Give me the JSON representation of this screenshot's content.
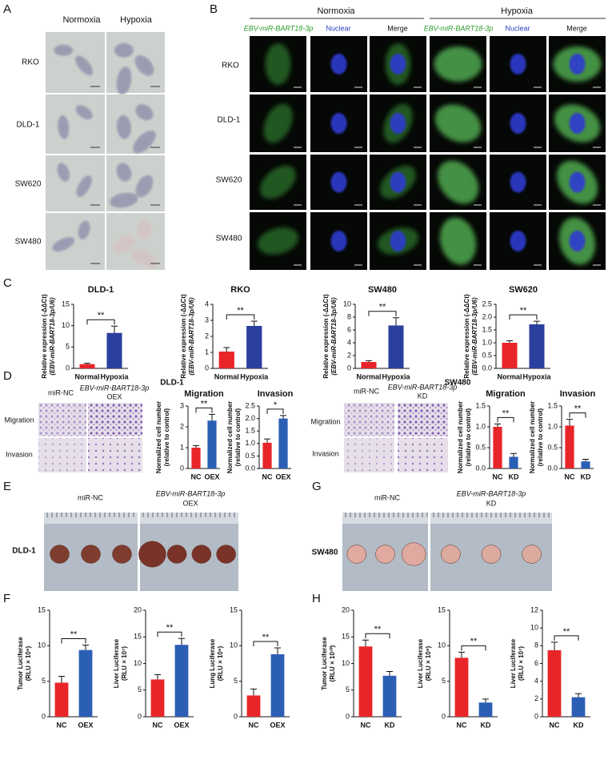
{
  "panels": {
    "letters": [
      "A",
      "B",
      "C",
      "D",
      "E",
      "F",
      "G",
      "H"
    ]
  },
  "panel_a": {
    "columns": [
      "Normoxia",
      "Hypoxia"
    ],
    "rows": [
      "RKO",
      "DLD-1",
      "SW620",
      "SW480"
    ]
  },
  "panel_b": {
    "groups": [
      "Normoxia",
      "Hypoxia"
    ],
    "channels": [
      "EBV-miR-BART18-3p",
      "Nuclear",
      "Merge"
    ],
    "rows": [
      "RKO",
      "DLD-1",
      "SW620",
      "SW480"
    ]
  },
  "panel_d": {
    "left": {
      "title": "DLD-1",
      "columns": [
        "miR-NC",
        "EBV-miR-BART18-3p",
        "OEX"
      ],
      "rows": [
        "Migration",
        "Invasion"
      ]
    },
    "right": {
      "title": "SW480",
      "columns": [
        "miR-NC",
        "EBV-miR-BART18-3p",
        "KD"
      ],
      "rows": [
        "Migration",
        "Invasion"
      ]
    }
  },
  "panel_e": {
    "columns": [
      "miR-NC",
      "EBV-miR-BART18-3p",
      "OEX"
    ],
    "row": "DLD-1"
  },
  "panel_g": {
    "columns": [
      "miR-NC",
      "EBV-miR-BART18-3p",
      "KD"
    ],
    "row": "SW480"
  },
  "chart_data": [
    {
      "type": "bar",
      "title": "DLD-1",
      "ylabel": [
        "Relative expression (-ΔΔCt)",
        "(EBV-miR-BART18-3p/U6)"
      ],
      "categories": [
        "Normal",
        "Hypoxia"
      ],
      "values": [
        1.0,
        8.3
      ],
      "errors": [
        0.2,
        1.6
      ],
      "colors": [
        "#e8262a",
        "#2b3f9e"
      ],
      "ylim": [
        0,
        15
      ],
      "yticks": [
        0,
        5,
        10,
        15
      ],
      "annotation": "**"
    },
    {
      "type": "bar",
      "title": "RKO",
      "ylabel": [
        "Relative expression (-ΔΔCt)",
        "(EBV-miR-BART18-3p/U6)"
      ],
      "categories": [
        "Normal",
        "Hypoxia"
      ],
      "values": [
        1.05,
        2.65
      ],
      "errors": [
        0.25,
        0.3
      ],
      "colors": [
        "#e8262a",
        "#2b3f9e"
      ],
      "ylim": [
        0,
        4
      ],
      "yticks": [
        0,
        1,
        2,
        3,
        4
      ],
      "annotation": "**"
    },
    {
      "type": "bar",
      "title": "SW480",
      "ylabel": [
        "Relative expression (-ΔΔCt)",
        "(EBV-miR-BART18-3p/U6)"
      ],
      "categories": [
        "Normal",
        "Hypoxia"
      ],
      "values": [
        1.0,
        6.7
      ],
      "errors": [
        0.2,
        1.2
      ],
      "colors": [
        "#e8262a",
        "#2b3f9e"
      ],
      "ylim": [
        0,
        10
      ],
      "yticks": [
        0,
        2,
        4,
        6,
        8,
        10
      ],
      "annotation": "**"
    },
    {
      "type": "bar",
      "title": "SW620",
      "ylabel": [
        "Relative expression (-ΔΔCt)",
        "(EBV-miR-BART18-3p/U6)"
      ],
      "categories": [
        "Normal",
        "Hypoxia"
      ],
      "values": [
        1.0,
        1.72
      ],
      "errors": [
        0.08,
        0.12
      ],
      "colors": [
        "#e8262a",
        "#2b3f9e"
      ],
      "ylim": [
        0,
        2.5
      ],
      "yticks": [
        {
          "value": 0,
          "label": "0.0"
        },
        0.5,
        {
          "value": 1,
          "label": "1.0"
        },
        1.5,
        {
          "value": 2,
          "label": "2.0"
        },
        2.5
      ],
      "annotation": "**"
    },
    {
      "type": "bar",
      "title": "Migration",
      "ylabel": [
        "Normalized cell number",
        "(relative to control)"
      ],
      "categories": [
        "NC",
        "OEX"
      ],
      "values": [
        1.0,
        2.3
      ],
      "errors": [
        0.1,
        0.3
      ],
      "colors": [
        "#e8262a",
        "#2b5fb5"
      ],
      "ylim": [
        0,
        3
      ],
      "yticks": [
        0,
        1,
        2,
        3
      ],
      "annotation": "**"
    },
    {
      "type": "bar",
      "title": "Invasion",
      "ylabel": [
        "Normalized cell number",
        "(relative to control)"
      ],
      "categories": [
        "NC",
        "OEX"
      ],
      "values": [
        1.03,
        2.0
      ],
      "errors": [
        0.15,
        0.12
      ],
      "colors": [
        "#e8262a",
        "#2b5fb5"
      ],
      "ylim": [
        0,
        2.5
      ],
      "yticks": [
        {
          "value": 0,
          "label": "0.0"
        },
        0.5,
        {
          "value": 1,
          "label": "1.0"
        },
        1.5,
        {
          "value": 2,
          "label": "2.0"
        },
        2.5
      ],
      "annotation": "*"
    },
    {
      "type": "bar",
      "title": "Migration",
      "ylabel": [
        "Normalized cell number",
        "(relative to control)"
      ],
      "categories": [
        "NC",
        "KD"
      ],
      "values": [
        1.0,
        0.28
      ],
      "errors": [
        0.07,
        0.08
      ],
      "colors": [
        "#e8262a",
        "#2b5fb5"
      ],
      "ylim": [
        0,
        1.5
      ],
      "yticks": [
        {
          "value": 0,
          "label": "0.0"
        },
        0.5,
        {
          "value": 1,
          "label": "1.0"
        },
        1.5
      ],
      "annotation": "**"
    },
    {
      "type": "bar",
      "title": "Invasion",
      "ylabel": [
        "Normalized cell number",
        "(relative to control)"
      ],
      "categories": [
        "NC",
        "KD"
      ],
      "values": [
        1.03,
        0.17
      ],
      "errors": [
        0.15,
        0.05
      ],
      "colors": [
        "#e8262a",
        "#2b5fb5"
      ],
      "ylim": [
        0,
        1.5
      ],
      "yticks": [
        {
          "value": 0,
          "label": "0.0"
        },
        0.5,
        {
          "value": 1,
          "label": "1.0"
        },
        1.5
      ],
      "annotation": "**"
    },
    {
      "type": "bar",
      "ylabel": [
        "Tumor Luciferase",
        "(RLU × 10⁶)"
      ],
      "categories": [
        "NC",
        "OEX"
      ],
      "values": [
        4.8,
        9.4
      ],
      "errors": [
        0.9,
        0.7
      ],
      "colors": [
        "#e8262a",
        "#2b5fb5"
      ],
      "ylim": [
        0,
        15
      ],
      "yticks": [
        0,
        5,
        10,
        15
      ],
      "annotation": "**"
    },
    {
      "type": "bar",
      "ylabel": [
        "Liver Luciferase",
        "(RLU × 10⁷)"
      ],
      "categories": [
        "NC",
        "OEX"
      ],
      "values": [
        7.0,
        13.5
      ],
      "errors": [
        0.9,
        1.2
      ],
      "colors": [
        "#e8262a",
        "#2b5fb5"
      ],
      "ylim": [
        0,
        20
      ],
      "yticks": [
        0,
        5,
        10,
        15,
        20
      ],
      "annotation": "**"
    },
    {
      "type": "bar",
      "ylabel": [
        "Lung Luciferase",
        "(RLU × 10⁶)"
      ],
      "categories": [
        "NC",
        "OEX"
      ],
      "values": [
        3.0,
        8.8
      ],
      "errors": [
        0.9,
        0.9
      ],
      "colors": [
        "#e8262a",
        "#2b5fb5"
      ],
      "ylim": [
        0,
        15
      ],
      "yticks": [
        0,
        5,
        10,
        15
      ],
      "annotation": "**"
    },
    {
      "type": "bar",
      "ylabel": [
        "Tumor Luciferase",
        "(RLU × 10¹⁰)"
      ],
      "categories": [
        "NC",
        "KD"
      ],
      "values": [
        13.2,
        7.7
      ],
      "errors": [
        1.2,
        0.8
      ],
      "colors": [
        "#e8262a",
        "#2b5fb5"
      ],
      "ylim": [
        0,
        20
      ],
      "yticks": [
        0,
        5,
        10,
        15,
        20
      ],
      "annotation": "**"
    },
    {
      "type": "bar",
      "ylabel": [
        "Liver Luciferase",
        "(RLU × 10⁸)"
      ],
      "categories": [
        "NC",
        "KD"
      ],
      "values": [
        8.3,
        2.0
      ],
      "errors": [
        0.8,
        0.5
      ],
      "colors": [
        "#e8262a",
        "#2b5fb5"
      ],
      "ylim": [
        0,
        15
      ],
      "yticks": [
        0,
        5,
        10,
        15
      ],
      "annotation": "**"
    },
    {
      "type": "bar",
      "ylabel": [
        "Liver Luciferase",
        "(RLU × 10⁷)"
      ],
      "categories": [
        "NC",
        "KD"
      ],
      "values": [
        7.5,
        2.2
      ],
      "errors": [
        0.9,
        0.4
      ],
      "colors": [
        "#e8262a",
        "#2b5fb5"
      ],
      "ylim": [
        0,
        12
      ],
      "yticks": [
        0,
        2,
        4,
        6,
        8,
        10,
        12
      ],
      "annotation": "**"
    }
  ]
}
